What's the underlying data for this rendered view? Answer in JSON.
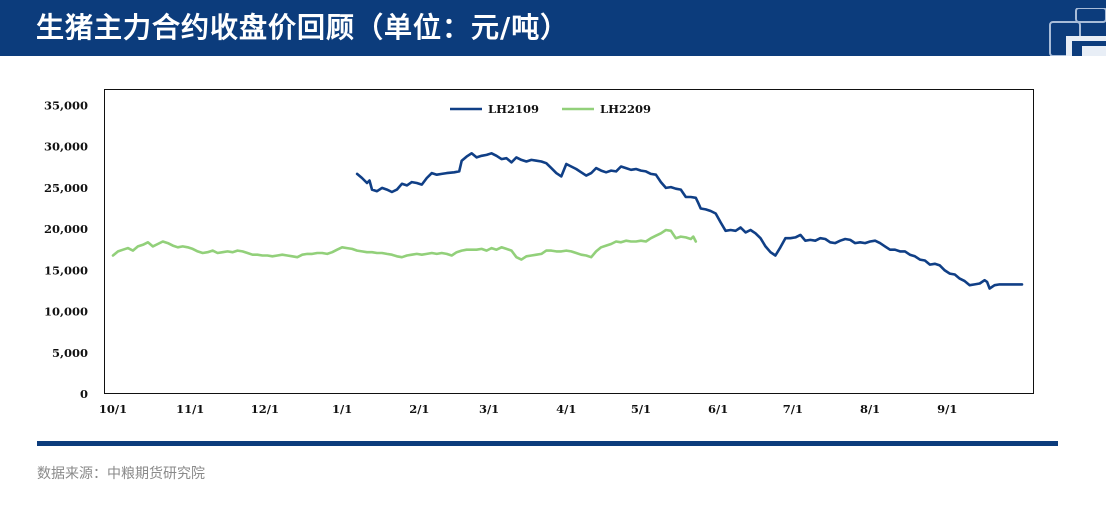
{
  "header": {
    "title": "生猪主力合约收盘价回顾（单位：元/吨）",
    "background": "#0c3c7c"
  },
  "source": {
    "text": "数据来源：中粮期货研究院"
  },
  "chart_data": {
    "type": "line",
    "title": "",
    "xlabel": "",
    "ylabel": "",
    "ylim": [
      0,
      37000
    ],
    "yticks": [
      0,
      5000,
      10000,
      15000,
      20000,
      25000,
      30000,
      35000
    ],
    "ytick_labels": [
      "0",
      "5,000",
      "10,000",
      "15,000",
      "20,000",
      "25,000",
      "30,000",
      "35,000"
    ],
    "xlim": [
      0,
      365
    ],
    "xticks": [
      {
        "label": "10/1",
        "day": 0
      },
      {
        "label": "11/1",
        "day": 31
      },
      {
        "label": "12/1",
        "day": 61
      },
      {
        "label": "1/1",
        "day": 92
      },
      {
        "label": "2/1",
        "day": 123
      },
      {
        "label": "3/1",
        "day": 151
      },
      {
        "label": "4/1",
        "day": 182
      },
      {
        "label": "5/1",
        "day": 212
      },
      {
        "label": "6/1",
        "day": 243
      },
      {
        "label": "7/1",
        "day": 273
      },
      {
        "label": "8/1",
        "day": 304
      },
      {
        "label": "9/1",
        "day": 335
      }
    ],
    "grid": false,
    "legend": "top-center",
    "series": [
      {
        "name": "LH2109",
        "color": "#103f86",
        "points": [
          [
            98,
            26700
          ],
          [
            100,
            26200
          ],
          [
            102,
            25600
          ],
          [
            103,
            25900
          ],
          [
            104,
            24800
          ],
          [
            106,
            24600
          ],
          [
            108,
            25000
          ],
          [
            110,
            24800
          ],
          [
            112,
            24500
          ],
          [
            114,
            24800
          ],
          [
            116,
            25500
          ],
          [
            118,
            25300
          ],
          [
            120,
            25700
          ],
          [
            122,
            25600
          ],
          [
            124,
            25400
          ],
          [
            126,
            26200
          ],
          [
            128,
            26800
          ],
          [
            130,
            26600
          ],
          [
            132,
            26700
          ],
          [
            134,
            26800
          ],
          [
            137,
            26900
          ],
          [
            139,
            27000
          ],
          [
            140,
            28300
          ],
          [
            142,
            28800
          ],
          [
            144,
            29200
          ],
          [
            146,
            28700
          ],
          [
            148,
            28900
          ],
          [
            150,
            29000
          ],
          [
            152,
            29200
          ],
          [
            154,
            28900
          ],
          [
            156,
            28500
          ],
          [
            158,
            28600
          ],
          [
            160,
            28100
          ],
          [
            162,
            28700
          ],
          [
            164,
            28400
          ],
          [
            166,
            28200
          ],
          [
            168,
            28400
          ],
          [
            170,
            28300
          ],
          [
            172,
            28200
          ],
          [
            174,
            28000
          ],
          [
            176,
            27400
          ],
          [
            178,
            26800
          ],
          [
            180,
            26400
          ],
          [
            182,
            27900
          ],
          [
            184,
            27600
          ],
          [
            186,
            27300
          ],
          [
            188,
            26900
          ],
          [
            190,
            26500
          ],
          [
            192,
            26800
          ],
          [
            194,
            27400
          ],
          [
            196,
            27100
          ],
          [
            198,
            26900
          ],
          [
            200,
            27100
          ],
          [
            202,
            27000
          ],
          [
            204,
            27600
          ],
          [
            206,
            27400
          ],
          [
            208,
            27200
          ],
          [
            210,
            27300
          ],
          [
            212,
            27100
          ],
          [
            214,
            27000
          ],
          [
            216,
            26700
          ],
          [
            218,
            26600
          ],
          [
            220,
            25700
          ],
          [
            222,
            25000
          ],
          [
            224,
            25100
          ],
          [
            226,
            24900
          ],
          [
            228,
            24800
          ],
          [
            230,
            23900
          ],
          [
            232,
            23900
          ],
          [
            234,
            23800
          ],
          [
            235,
            23200
          ],
          [
            236,
            22500
          ],
          [
            238,
            22400
          ],
          [
            240,
            22200
          ],
          [
            242,
            21900
          ],
          [
            244,
            20800
          ],
          [
            246,
            19800
          ],
          [
            248,
            19900
          ],
          [
            250,
            19800
          ],
          [
            252,
            20200
          ],
          [
            254,
            19600
          ],
          [
            256,
            19900
          ],
          [
            258,
            19500
          ],
          [
            260,
            18900
          ],
          [
            262,
            17900
          ],
          [
            264,
            17200
          ],
          [
            266,
            16800
          ],
          [
            268,
            17800
          ],
          [
            270,
            18900
          ],
          [
            272,
            18900
          ],
          [
            274,
            19000
          ],
          [
            276,
            19300
          ],
          [
            278,
            18600
          ],
          [
            280,
            18700
          ],
          [
            282,
            18600
          ],
          [
            284,
            18900
          ],
          [
            286,
            18800
          ],
          [
            288,
            18400
          ],
          [
            290,
            18300
          ],
          [
            292,
            18600
          ],
          [
            294,
            18800
          ],
          [
            296,
            18700
          ],
          [
            298,
            18300
          ],
          [
            300,
            18400
          ],
          [
            302,
            18300
          ],
          [
            304,
            18500
          ],
          [
            306,
            18600
          ],
          [
            308,
            18300
          ],
          [
            310,
            17900
          ],
          [
            312,
            17500
          ],
          [
            314,
            17500
          ],
          [
            316,
            17300
          ],
          [
            318,
            17300
          ],
          [
            320,
            16900
          ],
          [
            322,
            16700
          ],
          [
            324,
            16300
          ],
          [
            326,
            16200
          ],
          [
            328,
            15700
          ],
          [
            330,
            15800
          ],
          [
            332,
            15600
          ],
          [
            334,
            15000
          ],
          [
            336,
            14600
          ],
          [
            338,
            14500
          ],
          [
            340,
            14000
          ],
          [
            342,
            13700
          ],
          [
            344,
            13200
          ],
          [
            346,
            13300
          ],
          [
            348,
            13400
          ],
          [
            350,
            13800
          ],
          [
            351,
            13600
          ],
          [
            352,
            12800
          ],
          [
            354,
            13200
          ],
          [
            356,
            13300
          ],
          [
            365,
            13300
          ]
        ]
      },
      {
        "name": "LH2209",
        "color": "#92d07a",
        "points": [
          [
            0,
            16800
          ],
          [
            2,
            17300
          ],
          [
            4,
            17500
          ],
          [
            6,
            17700
          ],
          [
            8,
            17400
          ],
          [
            10,
            17900
          ],
          [
            12,
            18100
          ],
          [
            14,
            18400
          ],
          [
            16,
            17900
          ],
          [
            18,
            18200
          ],
          [
            20,
            18500
          ],
          [
            22,
            18300
          ],
          [
            24,
            18000
          ],
          [
            26,
            17800
          ],
          [
            28,
            17900
          ],
          [
            30,
            17800
          ],
          [
            32,
            17600
          ],
          [
            34,
            17300
          ],
          [
            36,
            17100
          ],
          [
            38,
            17200
          ],
          [
            40,
            17400
          ],
          [
            42,
            17100
          ],
          [
            44,
            17200
          ],
          [
            46,
            17300
          ],
          [
            48,
            17200
          ],
          [
            50,
            17400
          ],
          [
            52,
            17300
          ],
          [
            54,
            17100
          ],
          [
            56,
            16900
          ],
          [
            58,
            16900
          ],
          [
            60,
            16800
          ],
          [
            62,
            16800
          ],
          [
            64,
            16700
          ],
          [
            66,
            16800
          ],
          [
            68,
            16900
          ],
          [
            70,
            16800
          ],
          [
            72,
            16700
          ],
          [
            74,
            16600
          ],
          [
            76,
            16900
          ],
          [
            78,
            17000
          ],
          [
            80,
            17000
          ],
          [
            82,
            17100
          ],
          [
            84,
            17100
          ],
          [
            86,
            17000
          ],
          [
            88,
            17200
          ],
          [
            90,
            17500
          ],
          [
            92,
            17800
          ],
          [
            94,
            17700
          ],
          [
            96,
            17600
          ],
          [
            98,
            17400
          ],
          [
            100,
            17300
          ],
          [
            102,
            17200
          ],
          [
            104,
            17200
          ],
          [
            106,
            17100
          ],
          [
            108,
            17100
          ],
          [
            110,
            17000
          ],
          [
            112,
            16900
          ],
          [
            114,
            16700
          ],
          [
            116,
            16600
          ],
          [
            118,
            16800
          ],
          [
            120,
            16900
          ],
          [
            122,
            17000
          ],
          [
            124,
            16900
          ],
          [
            126,
            17000
          ],
          [
            128,
            17100
          ],
          [
            130,
            17000
          ],
          [
            132,
            17100
          ],
          [
            134,
            17000
          ],
          [
            136,
            16800
          ],
          [
            138,
            17200
          ],
          [
            140,
            17400
          ],
          [
            142,
            17500
          ],
          [
            144,
            17500
          ],
          [
            146,
            17500
          ],
          [
            148,
            17600
          ],
          [
            150,
            17400
          ],
          [
            152,
            17700
          ],
          [
            154,
            17500
          ],
          [
            156,
            17800
          ],
          [
            158,
            17600
          ],
          [
            160,
            17400
          ],
          [
            162,
            16600
          ],
          [
            164,
            16300
          ],
          [
            166,
            16700
          ],
          [
            168,
            16800
          ],
          [
            170,
            16900
          ],
          [
            172,
            17000
          ],
          [
            174,
            17400
          ],
          [
            176,
            17400
          ],
          [
            178,
            17300
          ],
          [
            180,
            17300
          ],
          [
            182,
            17400
          ],
          [
            184,
            17300
          ],
          [
            186,
            17100
          ],
          [
            188,
            16900
          ],
          [
            190,
            16800
          ],
          [
            192,
            16600
          ],
          [
            194,
            17300
          ],
          [
            196,
            17800
          ],
          [
            198,
            18000
          ],
          [
            200,
            18200
          ],
          [
            202,
            18500
          ],
          [
            204,
            18400
          ],
          [
            206,
            18600
          ],
          [
            208,
            18500
          ],
          [
            210,
            18500
          ],
          [
            212,
            18600
          ],
          [
            214,
            18500
          ],
          [
            216,
            18900
          ],
          [
            218,
            19200
          ],
          [
            220,
            19500
          ],
          [
            222,
            19900
          ],
          [
            224,
            19800
          ],
          [
            226,
            18900
          ],
          [
            228,
            19100
          ],
          [
            230,
            19000
          ],
          [
            232,
            18800
          ],
          [
            233,
            19100
          ],
          [
            234,
            18500
          ]
        ]
      }
    ]
  }
}
